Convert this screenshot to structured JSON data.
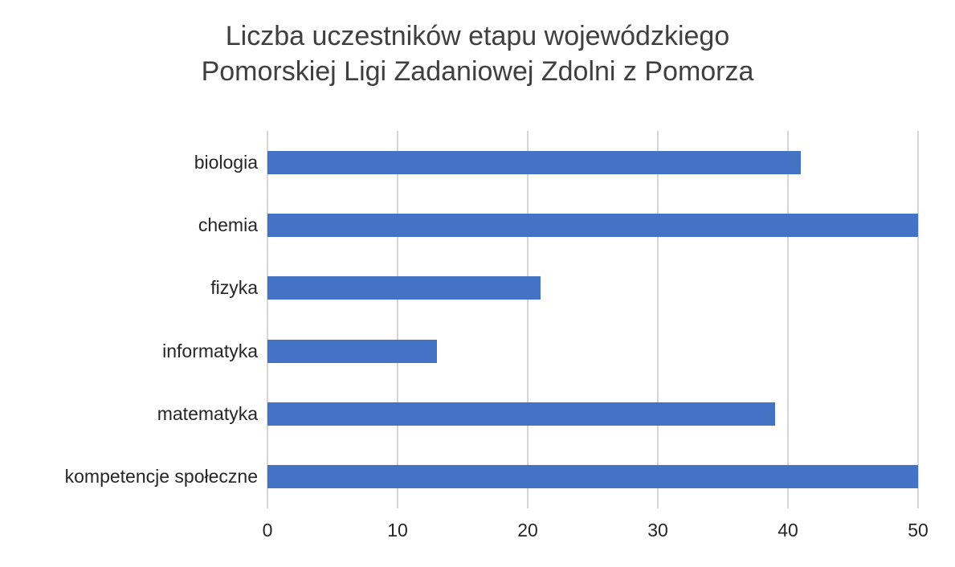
{
  "chart_data": {
    "type": "bar",
    "orientation": "horizontal",
    "title": "Liczba uczestników etapu wojewódzkiego Pomorskiej Ligi Zadaniowej Zdolni z Pomorza",
    "title_lines": [
      "Liczba uczestników etapu wojewódzkiego",
      "Pomorskiej Ligi Zadaniowej Zdolni z Pomorza"
    ],
    "categories": [
      "biologia",
      "chemia",
      "fizyka",
      "informatyka",
      "matematyka",
      "kompetencje społeczne"
    ],
    "values": [
      41,
      50,
      21,
      13,
      39,
      50
    ],
    "xlabel": "",
    "ylabel": "",
    "xlim": [
      0,
      50
    ],
    "xticks": [
      0,
      10,
      20,
      30,
      40,
      50
    ],
    "grid": "vertical",
    "legend": "none",
    "bar_color": "#4472C4",
    "gridline_color": "#d6d6d6",
    "text_color": "#262626",
    "title_color": "#3f3f3f"
  }
}
